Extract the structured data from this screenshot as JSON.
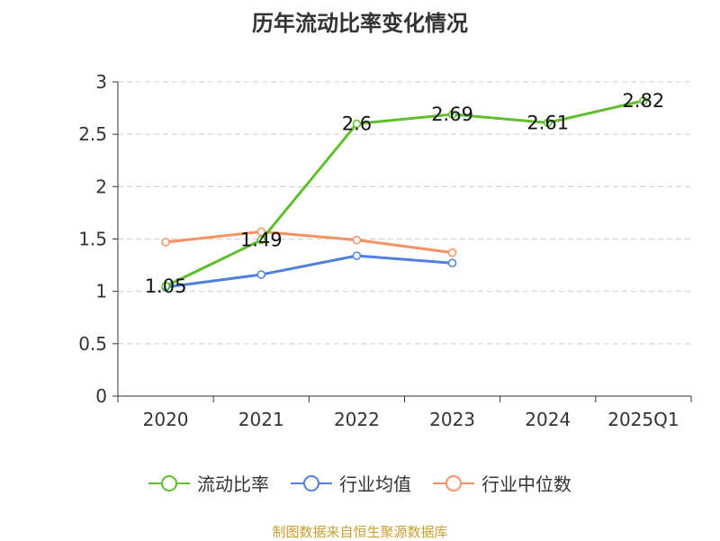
{
  "title": "历年流动比率变化情况",
  "source": "制图数据来自恒生聚源数据库",
  "chart_data": {
    "type": "line",
    "title": "历年流动比率变化情况",
    "categories": [
      "2020",
      "2021",
      "2022",
      "2023",
      "2024",
      "2025Q1"
    ],
    "ylim": [
      0,
      3
    ],
    "yticks": [
      "0",
      "0.5",
      "1",
      "1.5",
      "2",
      "2.5",
      "3"
    ],
    "grid": true,
    "legend_position": "bottom",
    "series": [
      {
        "name": "流动比率",
        "color": "#5fbe2c",
        "values": [
          1.05,
          1.49,
          2.6,
          2.69,
          2.61,
          2.82
        ],
        "labels": [
          "1.05",
          "1.49",
          "2.6",
          "2.69",
          "2.61",
          "2.82"
        ]
      },
      {
        "name": "行业均值",
        "color": "#5080dc",
        "values": [
          1.04,
          1.16,
          1.34,
          1.27,
          null,
          null
        ]
      },
      {
        "name": "行业中位数",
        "color": "#f59162",
        "values": [
          1.47,
          1.57,
          1.49,
          1.37,
          null,
          null
        ]
      }
    ]
  }
}
